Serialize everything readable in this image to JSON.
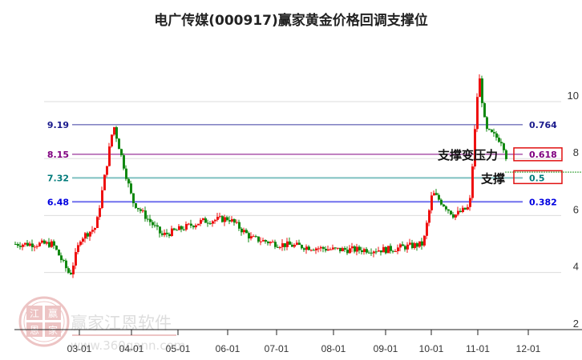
{
  "title": "电广传媒(000917)赢家黄金价格回调支撑位",
  "watermark": {
    "brand": "赢家江恩软件",
    "url": "www.360gann.com",
    "seal_chars": [
      "江",
      "赢",
      "恩",
      "家"
    ]
  },
  "chart_data": {
    "type": "candlestick",
    "title": "电广传媒(000917)赢家黄金价格回调支撑位",
    "xlabel": "",
    "ylabel": "",
    "ylim": [
      2,
      11.5
    ],
    "y_ticks": [
      2,
      4,
      6,
      8,
      10
    ],
    "x_ticks": [
      "03-01",
      "04-01",
      "05-01",
      "06-01",
      "07-01",
      "08-01",
      "09-01",
      "10-01",
      "11-01",
      "12-01"
    ],
    "grid": true,
    "fib_levels": [
      {
        "price": "9.19",
        "ratio": "0.764",
        "color": "#1a1a8c"
      },
      {
        "price": "8.15",
        "ratio": "0.618",
        "color": "#800080"
      },
      {
        "price": "7.32",
        "ratio": "0.5",
        "color": "#007b7b"
      },
      {
        "price": "6.48",
        "ratio": "0.382",
        "color": "#0000e0"
      }
    ],
    "annotations": [
      {
        "text": "支撑变压力",
        "level": "0.618",
        "boxed": true
      },
      {
        "text": "支撑",
        "level": "0.5",
        "boxed": true
      }
    ],
    "current_price_line": 7.3,
    "approx_price_path": [
      {
        "date": "02-15",
        "price": 5.0
      },
      {
        "date": "02-25",
        "price": 3.9
      },
      {
        "date": "03-01",
        "price": 5.2
      },
      {
        "date": "03-10",
        "price": 5.6
      },
      {
        "date": "03-20",
        "price": 9.2
      },
      {
        "date": "04-01",
        "price": 6.5
      },
      {
        "date": "04-20",
        "price": 5.3
      },
      {
        "date": "05-15",
        "price": 5.8
      },
      {
        "date": "06-01",
        "price": 5.9
      },
      {
        "date": "06-15",
        "price": 5.2
      },
      {
        "date": "07-01",
        "price": 5.0
      },
      {
        "date": "08-01",
        "price": 4.8
      },
      {
        "date": "09-01",
        "price": 4.8
      },
      {
        "date": "09-25",
        "price": 5.0
      },
      {
        "date": "10-01",
        "price": 6.8
      },
      {
        "date": "10-15",
        "price": 6.0
      },
      {
        "date": "10-25",
        "price": 6.3
      },
      {
        "date": "11-01",
        "price": 11.0
      },
      {
        "date": "11-05",
        "price": 9.0
      },
      {
        "date": "11-15",
        "price": 8.6
      },
      {
        "date": "11-20",
        "price": 7.4
      }
    ]
  }
}
